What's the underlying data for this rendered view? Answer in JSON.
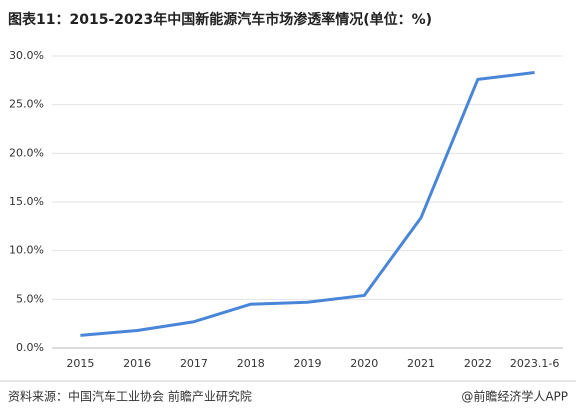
{
  "chart_data": {
    "type": "line",
    "title": "图表11：2015-2023年中国新能源汽车市场渗透率情况(单位：%)",
    "categories": [
      "2015",
      "2016",
      "2017",
      "2018",
      "2019",
      "2020",
      "2021",
      "2022",
      "2023.1-6"
    ],
    "series": [
      {
        "name": "新能源汽车市场渗透率",
        "color": "#4a86d8",
        "values": [
          1.3,
          1.8,
          2.7,
          4.5,
          4.7,
          5.4,
          13.4,
          27.6,
          28.3
        ]
      }
    ],
    "ylim": [
      0,
      30
    ],
    "yticks": [
      {
        "value": 0,
        "label": "0.0%"
      },
      {
        "value": 5,
        "label": "5.0%"
      },
      {
        "value": 10,
        "label": "10.0%"
      },
      {
        "value": 15,
        "label": "15.0%"
      },
      {
        "value": 20,
        "label": "20.0%"
      },
      {
        "value": 25,
        "label": "25.0%"
      },
      {
        "value": 30,
        "label": "30.0%"
      }
    ],
    "grid": true,
    "source": "资料来源：中国汽车工业协会 前瞻产业研究院",
    "credit": "@前瞻经济学人APP"
  }
}
